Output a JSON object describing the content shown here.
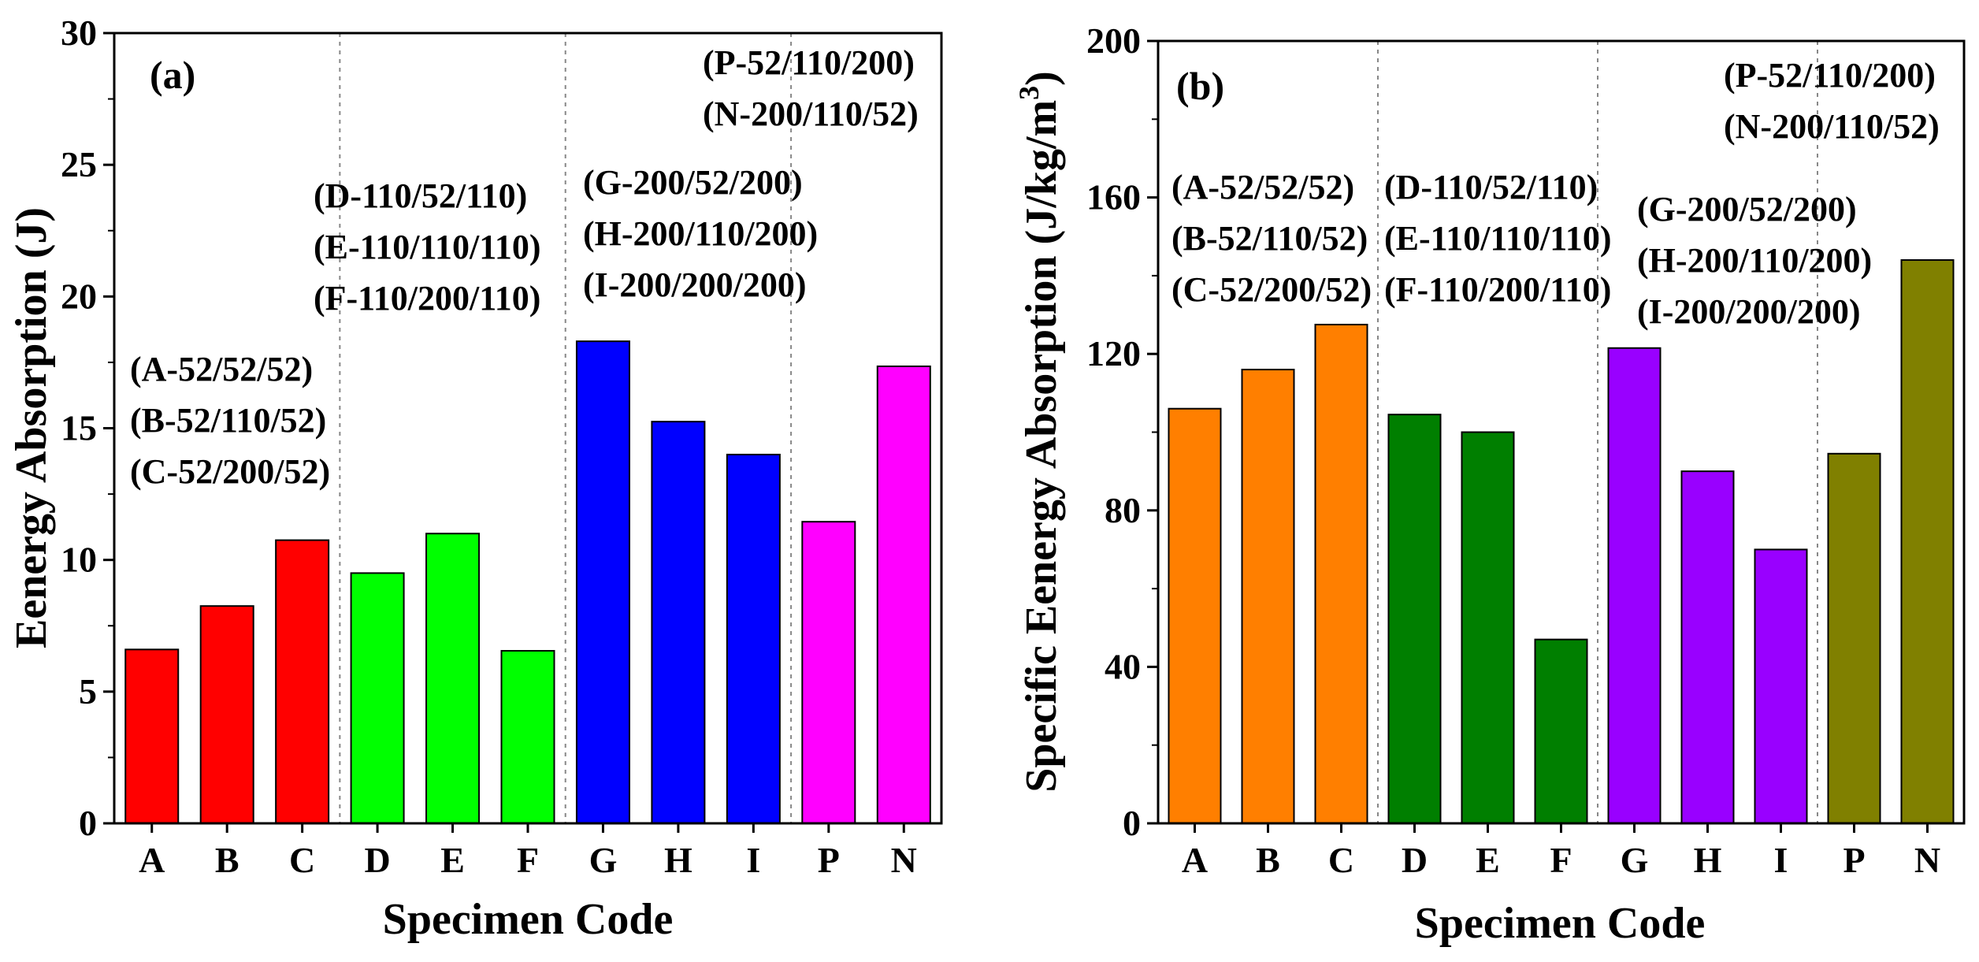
{
  "chart_data": [
    {
      "type": "bar",
      "panel_label": "(a)",
      "title": "",
      "xlabel": "Specimen Code",
      "ylabel": "Eenergy Absorption (J)",
      "ylim": [
        0,
        30
      ],
      "yticks": [
        "0",
        "5",
        "10",
        "15",
        "20",
        "25",
        "30"
      ],
      "categories": [
        "A",
        "B",
        "C",
        "D",
        "E",
        "F",
        "G",
        "H",
        "I",
        "P",
        "N"
      ],
      "values": [
        6.6,
        8.25,
        10.75,
        9.5,
        11.0,
        6.55,
        18.3,
        15.25,
        14.0,
        11.45,
        17.35
      ],
      "colors": [
        "#ff0000",
        "#ff0000",
        "#ff0000",
        "#00ff00",
        "#00ff00",
        "#00ff00",
        "#0000ff",
        "#0000ff",
        "#0000ff",
        "#ff00ff",
        "#ff00ff"
      ],
      "group_separators_after": [
        2,
        5,
        8
      ],
      "annotations": [
        {
          "lines": [
            "(A-52/52/52)",
            "(B-52/110/52)",
            "(C-52/200/52)"
          ]
        },
        {
          "lines": [
            "(D-110/52/110)",
            "(E-110/110/110)",
            "(F-110/200/110)"
          ]
        },
        {
          "lines": [
            "(G-200/52/200)",
            "(H-200/110/200)",
            "(I-200/200/200)"
          ]
        },
        {
          "lines": [
            "(P-52/110/200)",
            "(N-200/110/52)"
          ]
        }
      ]
    },
    {
      "type": "bar",
      "panel_label": "(b)",
      "title": "",
      "xlabel": "Specimen Code",
      "ylabel": "Specific Eenergy Absorption (J/kg/m",
      "ylabel_superscript": "3",
      "ylabel_suffix": ")",
      "ylim": [
        0,
        200
      ],
      "yticks": [
        "0",
        "40",
        "80",
        "120",
        "160",
        "200"
      ],
      "categories": [
        "A",
        "B",
        "C",
        "D",
        "E",
        "F",
        "G",
        "H",
        "I",
        "P",
        "N"
      ],
      "values": [
        106,
        116,
        127.5,
        104.5,
        100,
        47,
        121.5,
        90,
        70,
        94.5,
        144
      ],
      "colors": [
        "#ff7f00",
        "#ff7f00",
        "#ff7f00",
        "#007f00",
        "#007f00",
        "#007f00",
        "#9900ff",
        "#9900ff",
        "#9900ff",
        "#808000",
        "#808000"
      ],
      "group_separators_after": [
        2,
        5,
        8
      ],
      "annotations": [
        {
          "lines": [
            "(A-52/52/52)",
            "(B-52/110/52)",
            "(C-52/200/52)"
          ]
        },
        {
          "lines": [
            "(D-110/52/110)",
            "(E-110/110/110)",
            "(F-110/200/110)"
          ]
        },
        {
          "lines": [
            "(G-200/52/200)",
            "(H-200/110/200)",
            "(I-200/200/200)"
          ]
        },
        {
          "lines": [
            "(P-52/110/200)",
            "(N-200/110/52)"
          ]
        }
      ]
    }
  ]
}
